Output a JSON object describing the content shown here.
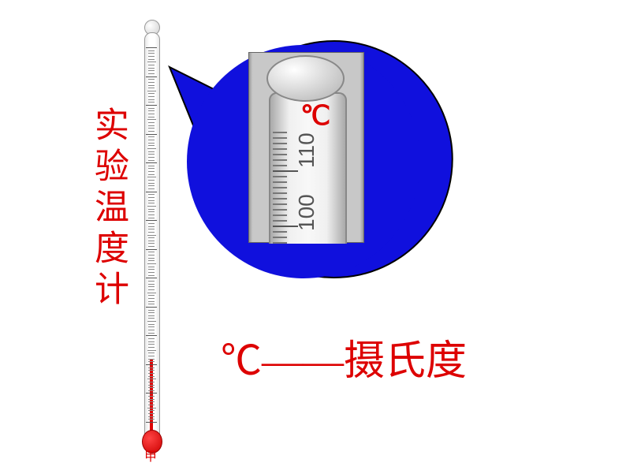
{
  "thermometer": {
    "scale_max": 110,
    "scale_min": -20,
    "major_step": 10,
    "caption": "甲",
    "vertical_label": "实验温度计"
  },
  "bubble": {
    "bg_color": "#1010dd",
    "radius": 150,
    "zoom_unit": "℃",
    "scale_labels": [
      "110",
      "100"
    ]
  },
  "bottom": {
    "text": "℃——摄氏度"
  },
  "colors": {
    "red": "#dd0000",
    "blue": "#1010dd"
  }
}
